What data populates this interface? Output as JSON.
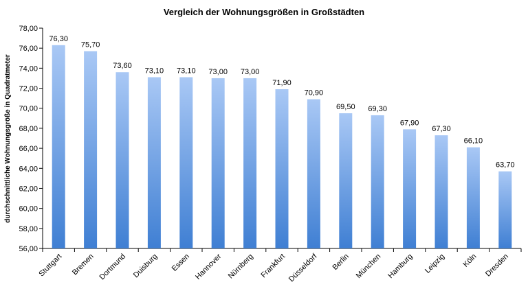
{
  "chart_data": {
    "type": "bar",
    "title": "Vergleich der Wohnungsgrößen in Großstädten",
    "xlabel": "",
    "ylabel": "durchschnittliche Wohnungsgröße in Quadratmeter",
    "ylim": [
      56,
      78
    ],
    "y_ticks": [
      "56,00",
      "58,00",
      "60,00",
      "62,00",
      "64,00",
      "66,00",
      "68,00",
      "70,00",
      "72,00",
      "74,00",
      "76,00",
      "78,00"
    ],
    "categories": [
      "Stuttgart",
      "Bremen",
      "Dortmund",
      "Duisburg",
      "Essen",
      "Hannover",
      "Nürnberg",
      "Frankfurt",
      "Düsseldorf",
      "Berlin",
      "München",
      "Hamburg",
      "Leipzig",
      "Köln",
      "Dresden"
    ],
    "values": [
      76.3,
      75.7,
      73.6,
      73.1,
      73.1,
      73.0,
      73.0,
      71.9,
      70.9,
      69.5,
      69.3,
      67.9,
      67.3,
      66.1,
      63.7
    ],
    "value_labels": [
      "76,30",
      "75,70",
      "73,60",
      "73,10",
      "73,10",
      "73,00",
      "73,00",
      "71,90",
      "70,90",
      "69,50",
      "69,30",
      "67,90",
      "67,30",
      "66,10",
      "63,70"
    ],
    "grid": false,
    "legend": "none",
    "colors": {
      "bar_top": "#a9c8f5",
      "bar_bottom": "#3f7fd3"
    }
  }
}
